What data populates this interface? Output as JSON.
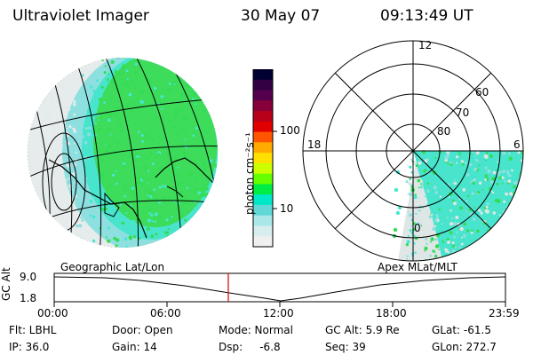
{
  "header": {
    "instrument": "Ultraviolet Imager",
    "date": "30 May 07",
    "time": "09:13:49 UT"
  },
  "colorbar": {
    "unit_label": "photon cm⁻²s⁻¹",
    "ticks": [
      "100",
      "10"
    ],
    "colors": [
      "#000033",
      "#330044",
      "#55004d",
      "#88003a",
      "#b8001a",
      "#e00000",
      "#ff5500",
      "#ffaa00",
      "#ffe000",
      "#ccff00",
      "#66ff00",
      "#00ee44",
      "#00e8c8",
      "#60d8d8",
      "#a8e8e8",
      "#d8eeee",
      "#f0f0f0"
    ]
  },
  "left_map": {
    "label": "Geographic Lat/Lon",
    "fill_colors": [
      "#33dd55",
      "#44e8d0",
      "#88e0e0",
      "#e4eaea"
    ]
  },
  "right_plot": {
    "label": "Apex MLat/MLT",
    "mlt_labels": {
      "top": "12",
      "left": "18",
      "right": "6",
      "bottom": "0"
    },
    "mlat_labels": [
      "60",
      "70",
      "80"
    ]
  },
  "timeline": {
    "y_axis_title": "GC Alt",
    "y_ticks": [
      "9.0",
      "1.8"
    ],
    "x_ticks": [
      "00:00",
      "06:00",
      "12:00",
      "18:00",
      "23:59"
    ],
    "marker_color": "#dd0000"
  },
  "info": {
    "row1": [
      "Flt: LBHL",
      "Door: Open",
      "Mode: Normal",
      "GC Alt: 5.9 Re",
      "GLat: -61.5"
    ],
    "row2": [
      "IP: 36.0",
      "Gain: 14",
      "Dsp:     -6.8",
      "Seq: 39",
      "GLon: 272.7"
    ]
  }
}
